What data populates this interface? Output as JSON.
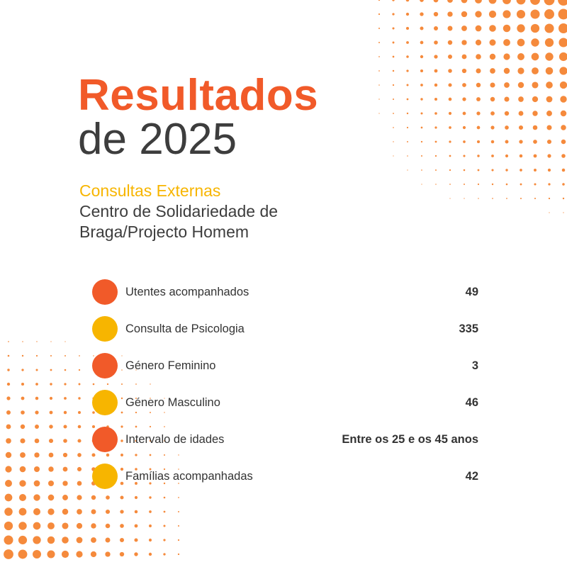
{
  "header": {
    "title": "Resultados",
    "year": "de 2025",
    "subtitle": "Consultas Externas",
    "organization": "Centro de Solidariedade de Braga/Projecto Homem"
  },
  "colors": {
    "accent_orange": "#f15a29",
    "accent_yellow": "#f7b500",
    "text_dark": "#3d3d3d",
    "dot_pattern": "#f58a3c"
  },
  "stats": [
    {
      "label": "Utentes acompanhados",
      "value": "49",
      "color": "#f15a29"
    },
    {
      "label": "Consulta de Psicologia",
      "value": "335",
      "color": "#f7b500"
    },
    {
      "label": "Género Feminino",
      "value": "3",
      "color": "#f15a29"
    },
    {
      "label": "Género Masculino",
      "value": "46",
      "color": "#f7b500"
    },
    {
      "label": "Intervalo de idades",
      "value": "Entre os 25 e os 45 anos",
      "color": "#f15a29"
    },
    {
      "label": "Famílias acompanhadas",
      "value": "42",
      "color": "#f7b500"
    }
  ]
}
